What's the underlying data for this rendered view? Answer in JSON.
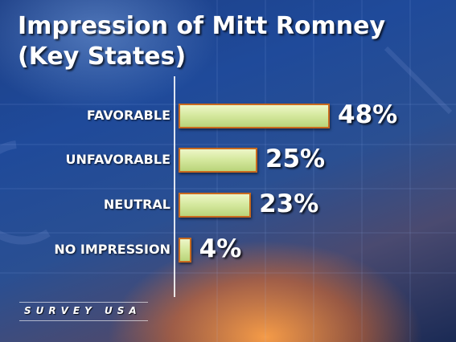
{
  "chart_data": {
    "type": "bar",
    "orientation": "horizontal",
    "title": "Impression of Mitt Romney",
    "subtitle": "(Key States)",
    "categories": [
      "FAVORABLE",
      "UNFAVORABLE",
      "NEUTRAL",
      "NO IMPRESSION"
    ],
    "values": [
      48,
      25,
      23,
      4
    ],
    "value_labels": [
      "48%",
      "25%",
      "23%",
      "4%"
    ],
    "xlim": [
      0,
      50
    ],
    "grid": false,
    "bar_color": "#d6e9a0",
    "bar_border_color": "#c86a1e"
  },
  "branding": {
    "logo_text": "SURVEY USA"
  }
}
